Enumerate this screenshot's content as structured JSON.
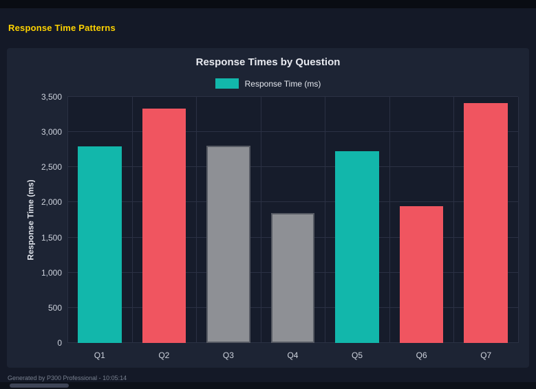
{
  "page": {
    "title": "Response Time Patterns",
    "title_color": "#ffd300",
    "footer_note": "Generated by P300 Professional - 10:05:14"
  },
  "chart_data": {
    "type": "bar",
    "title": "Response Times by Question",
    "legend": {
      "label": "Response Time (ms)",
      "swatch_color": "#12b7ab",
      "position": "top"
    },
    "categories": [
      "Q1",
      "Q2",
      "Q3",
      "Q4",
      "Q5",
      "Q6",
      "Q7"
    ],
    "series": [
      {
        "name": "Response Time (ms)",
        "values": [
          2800,
          3330,
          2810,
          1850,
          2730,
          1950,
          3410
        ],
        "colors": [
          "#12b7ab",
          "#f05560",
          "#8e9095",
          "#8e9095",
          "#12b7ab",
          "#f05560",
          "#f05560"
        ],
        "border_colors": [
          "#12b7ab",
          "#f05560",
          "#565a63",
          "#565a63",
          "#12b7ab",
          "#f05560",
          "#f05560"
        ]
      }
    ],
    "xlabel": "",
    "ylabel": "Response Time (ms)",
    "ylim": [
      0,
      3500
    ],
    "ytick_step": 500,
    "ytick_labels": [
      "0",
      "500",
      "1,000",
      "1,500",
      "2,000",
      "2,500",
      "3,000",
      "3,500"
    ],
    "grid": true,
    "background": "#1d2434",
    "plot_background": "#161c2b",
    "grid_color": "#2b3144"
  }
}
